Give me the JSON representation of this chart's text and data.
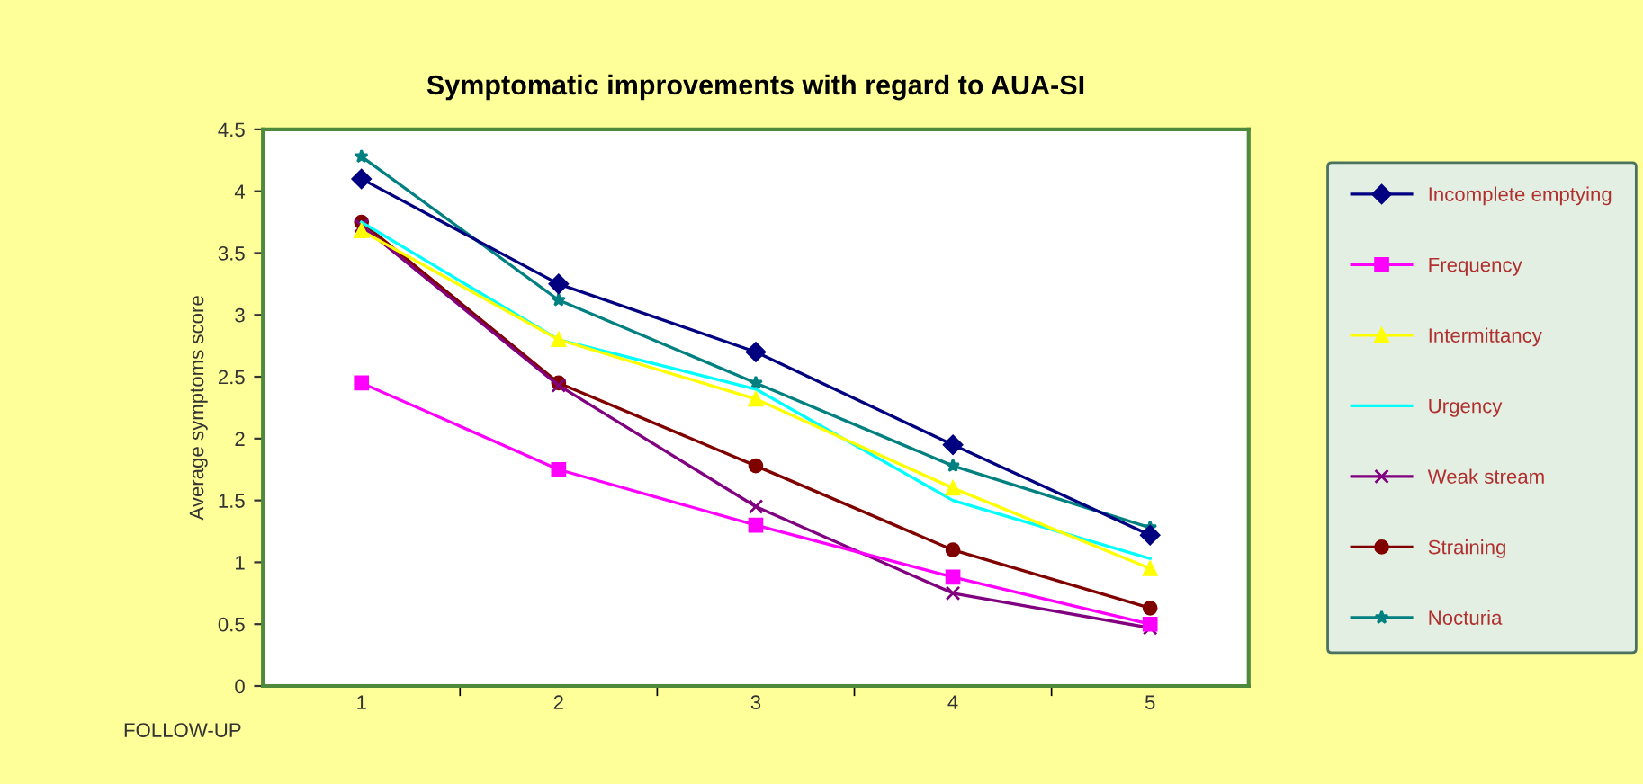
{
  "chart_data": {
    "type": "line",
    "title": "Symptomatic improvements with regard to AUA-SI",
    "xlabel": "FOLLOW-UP",
    "ylabel": "Average symptoms score",
    "categories": [
      "1",
      "2",
      "3",
      "4",
      "5"
    ],
    "ylim": [
      0,
      4.5
    ],
    "yticks": [
      0,
      0.5,
      1,
      1.5,
      2,
      2.5,
      3,
      3.5,
      4,
      4.5
    ],
    "grid": false,
    "legend": "right",
    "series": [
      {
        "name": "Incomplete emptying",
        "color": "#000080",
        "marker": "diamond",
        "values": [
          4.1,
          3.25,
          2.7,
          1.95,
          1.22
        ]
      },
      {
        "name": "Frequency",
        "color": "#ff00ff",
        "marker": "square",
        "values": [
          2.45,
          1.75,
          1.3,
          0.88,
          0.5
        ]
      },
      {
        "name": "Intermittancy",
        "color": "#ffff00",
        "marker": "triangle",
        "values": [
          3.68,
          2.8,
          2.32,
          1.6,
          0.95
        ]
      },
      {
        "name": "Urgency",
        "color": "#00ffff",
        "marker": "none",
        "values": [
          3.75,
          2.8,
          2.4,
          1.5,
          1.03
        ]
      },
      {
        "name": "Weak stream",
        "color": "#800080",
        "marker": "cross",
        "values": [
          3.72,
          2.43,
          1.45,
          0.75,
          0.47
        ]
      },
      {
        "name": "Straining",
        "color": "#800000",
        "marker": "circle",
        "values": [
          3.75,
          2.45,
          1.78,
          1.1,
          0.63
        ]
      },
      {
        "name": "Nocturia",
        "color": "#008080",
        "marker": "star",
        "values": [
          4.28,
          3.12,
          2.45,
          1.78,
          1.28
        ]
      }
    ]
  }
}
